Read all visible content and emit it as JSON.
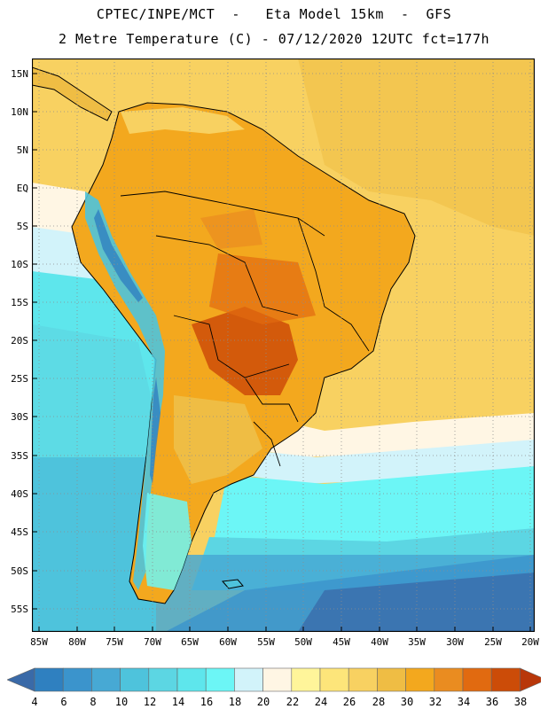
{
  "header": {
    "line1": "CPTEC/INPE/MCT  -   Eta Model 15km  -  GFS",
    "line2": "2 Metre Temperature (C) - 07/12/2020 12UTC fct=177h"
  },
  "map": {
    "lat_labels": [
      "15N",
      "10N",
      "5N",
      "EQ",
      "5S",
      "10S",
      "15S",
      "20S",
      "25S",
      "30S",
      "35S",
      "40S",
      "45S",
      "50S",
      "55S"
    ],
    "lon_labels": [
      "85W",
      "80W",
      "75W",
      "70W",
      "65W",
      "60W",
      "55W",
      "50W",
      "45W",
      "40W",
      "35W",
      "30W",
      "25W",
      "20W"
    ]
  },
  "colorbar": {
    "labels": [
      "4",
      "6",
      "8",
      "10",
      "12",
      "14",
      "16",
      "18",
      "20",
      "22",
      "24",
      "26",
      "28",
      "30",
      "32",
      "34",
      "36",
      "38"
    ],
    "colors": [
      "#3a6aa8",
      "#2f80c0",
      "#3b94cc",
      "#47a9d4",
      "#4ec3dc",
      "#5cd6e3",
      "#5ee6ec",
      "#6cf6f6",
      "#d2f3fa",
      "#fff6e4",
      "#fff59a",
      "#fde57a",
      "#f8d161",
      "#efbd44",
      "#f3a81e",
      "#ea8c20",
      "#e16a10",
      "#cc4c08",
      "#b8370a"
    ]
  }
}
